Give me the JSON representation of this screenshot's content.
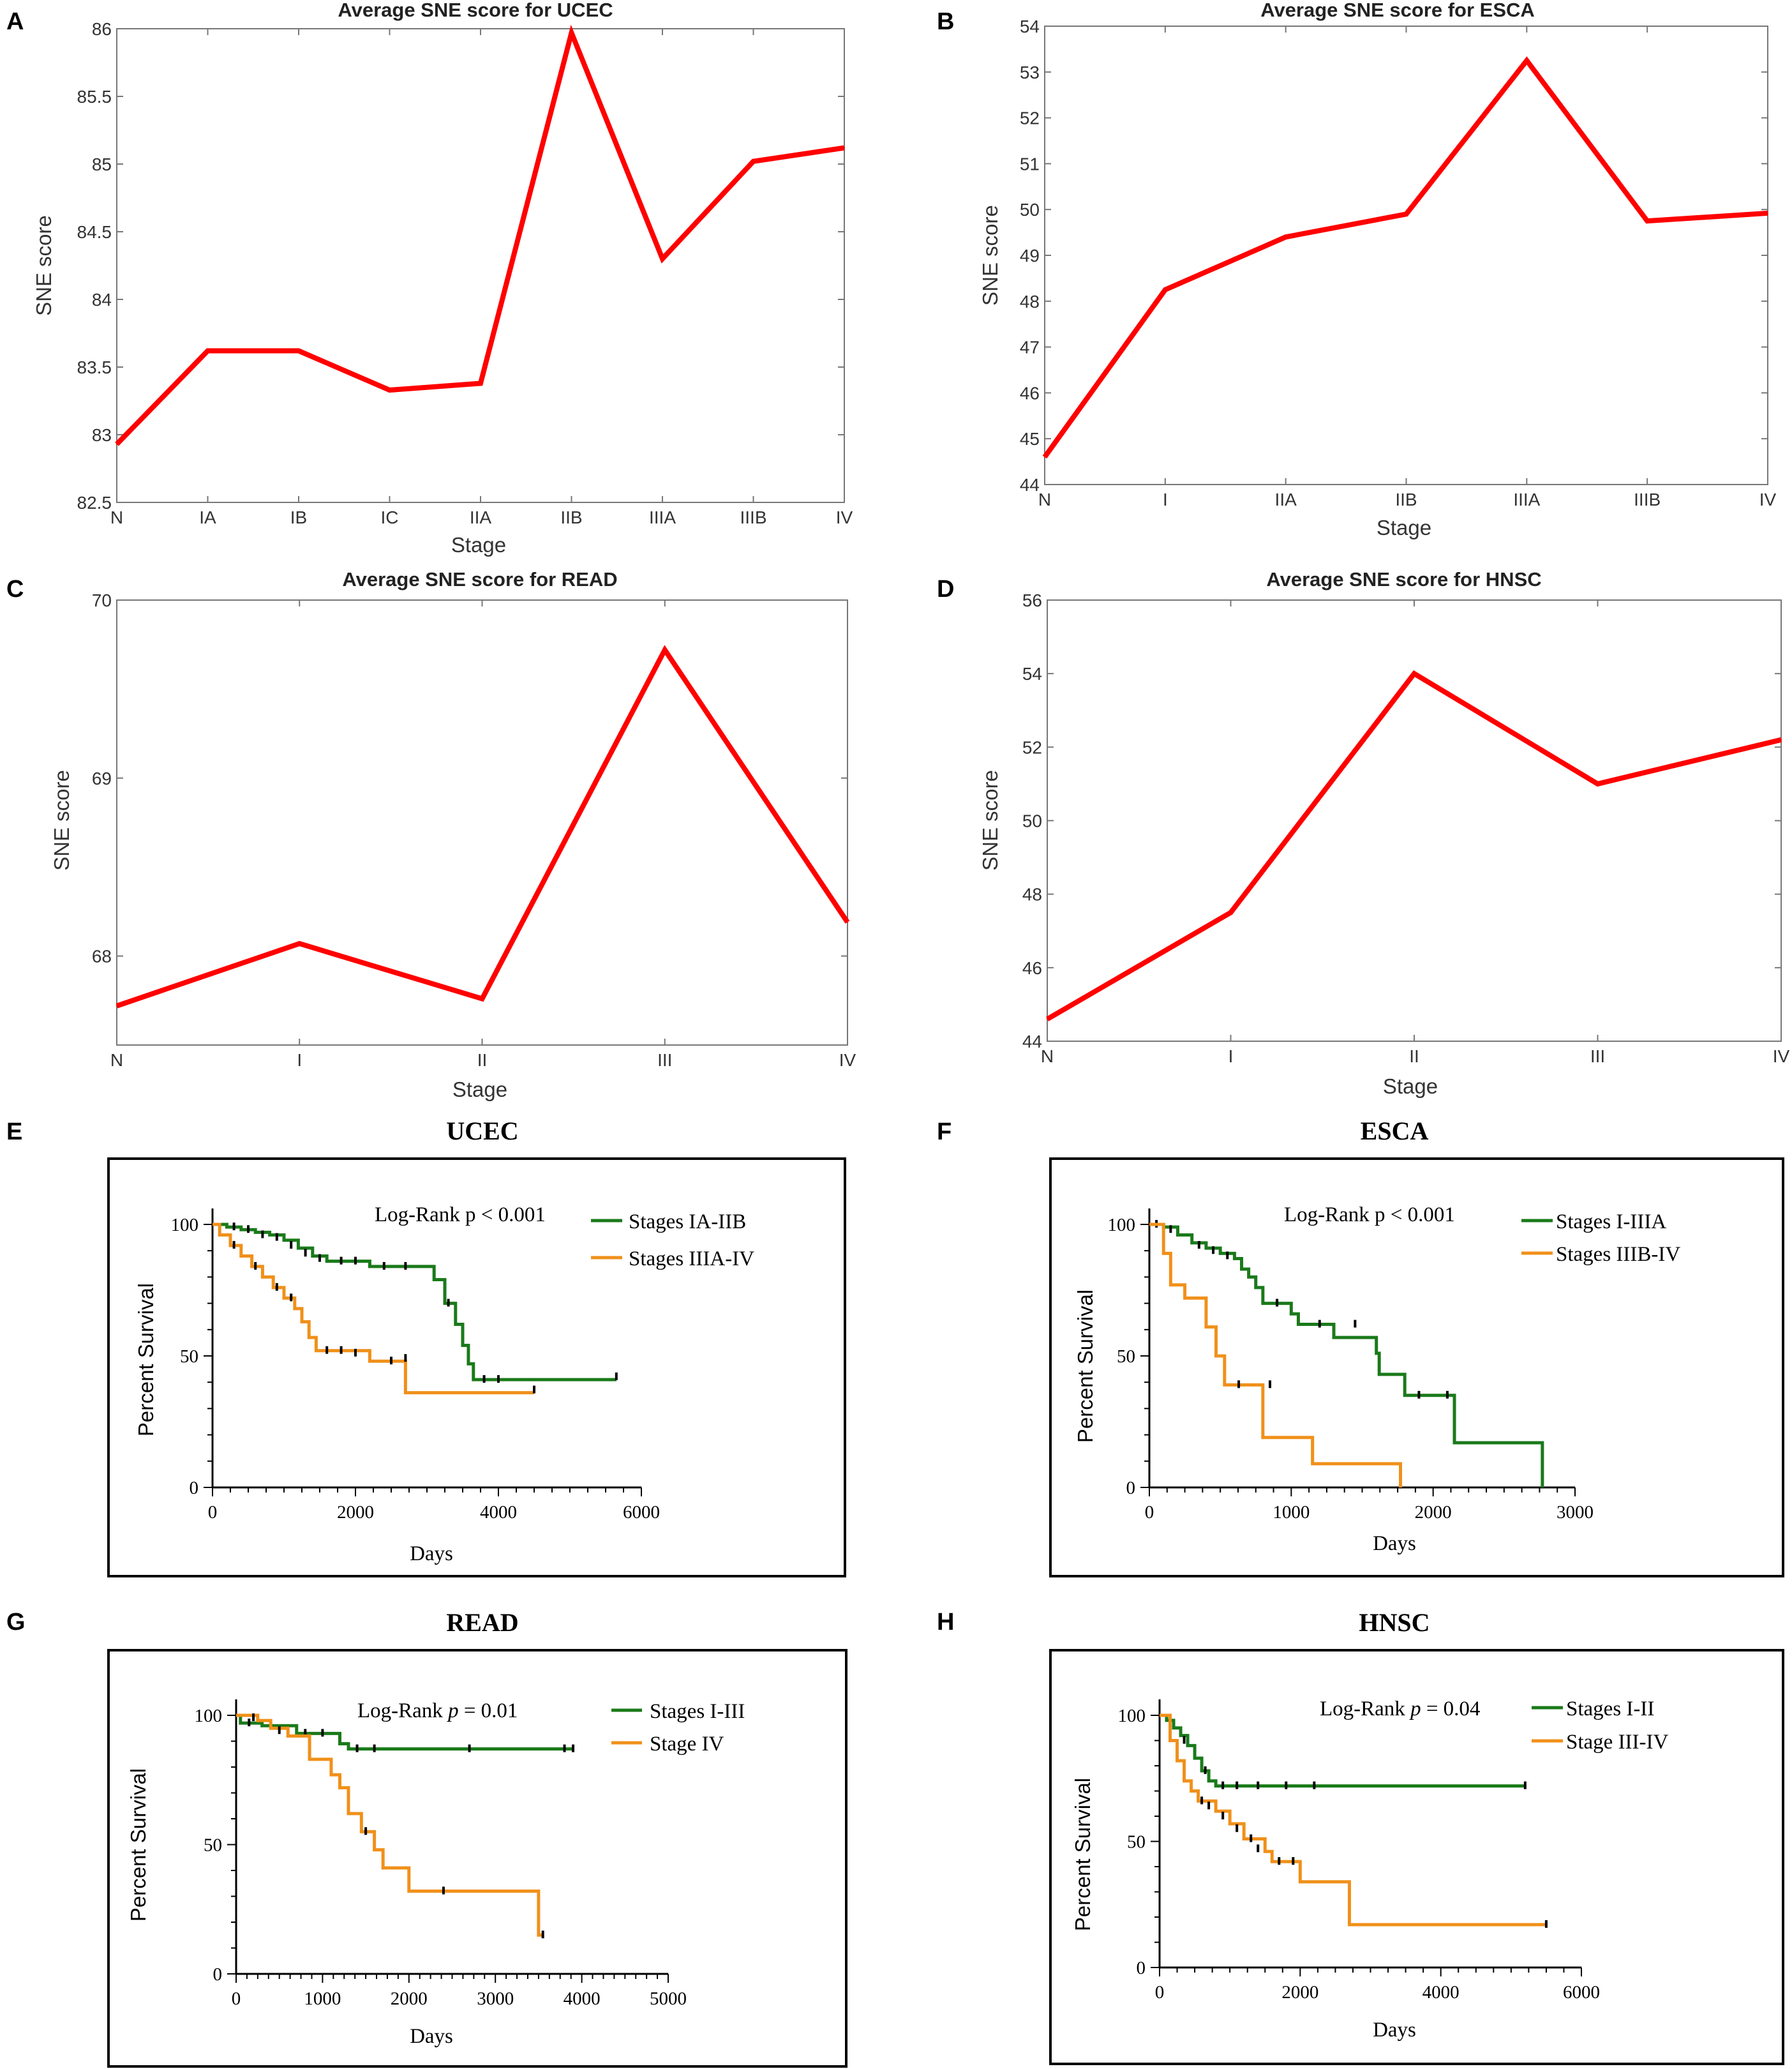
{
  "colors": {
    "line_red": "#ff0000",
    "km_green": "#1a7a1a",
    "km_orange": "#f0901a",
    "censor": "#000000",
    "frame": "#000000"
  },
  "chart_data": [
    {
      "panel": "A",
      "type": "line",
      "title": "Average SNE score for UCEC",
      "xlabel": "Stage",
      "ylabel": "SNE score",
      "categories": [
        "N",
        "IA",
        "IB",
        "IC",
        "IIA",
        "IIB",
        "IIIA",
        "IIIB",
        "IV"
      ],
      "values": [
        82.93,
        83.62,
        83.62,
        83.33,
        83.38,
        85.97,
        84.3,
        85.02,
        85.12
      ],
      "ylim": [
        82.5,
        86
      ],
      "yticks": [
        "86",
        "85.5",
        "85",
        "84.5",
        "84",
        "83.5",
        "83",
        "82.5"
      ]
    },
    {
      "panel": "B",
      "type": "line",
      "title": "Average SNE score for ESCA",
      "xlabel": "Stage",
      "ylabel": "SNE score",
      "categories": [
        "N",
        "I",
        "IIA",
        "IIB",
        "IIIA",
        "IIIB",
        "IV"
      ],
      "values": [
        44.6,
        48.25,
        49.4,
        49.9,
        53.25,
        49.75,
        49.92
      ],
      "ylim": [
        44,
        54
      ],
      "yticks": [
        "54",
        "53",
        "52",
        "51",
        "50",
        "49",
        "48",
        "47",
        "46",
        "45",
        "44"
      ]
    },
    {
      "panel": "C",
      "type": "line",
      "title": "Average SNE score for READ",
      "xlabel": "Stage",
      "ylabel": "SNE score",
      "categories": [
        "N",
        "I",
        "II",
        "III",
        "IV"
      ],
      "values": [
        67.72,
        68.07,
        67.76,
        69.72,
        68.19
      ],
      "ylim": [
        67.5,
        70
      ],
      "yticks": [
        "70",
        "69",
        "68"
      ]
    },
    {
      "panel": "D",
      "type": "line",
      "title": "Average SNE score for HNSC",
      "xlabel": "Stage",
      "ylabel": "SNE score",
      "categories": [
        "N",
        "I",
        "II",
        "III",
        "IV"
      ],
      "values": [
        44.6,
        47.5,
        54,
        51,
        52.2
      ],
      "ylim": [
        44,
        56
      ],
      "yticks": [
        "56",
        "54",
        "52",
        "50",
        "48",
        "46",
        "44"
      ]
    },
    {
      "panel": "E",
      "type": "kaplan-meier",
      "title": "UCEC",
      "xlabel": "Days",
      "ylabel": "Percent Survival",
      "xlim": [
        0,
        6000
      ],
      "ylim": [
        0,
        100
      ],
      "xticks": [
        "0",
        "2000",
        "4000",
        "6000"
      ],
      "yticks": [
        "100",
        "50",
        "0"
      ],
      "logrank": [
        "Log-Rank p < 0.001"
      ],
      "series": [
        {
          "name": "Stages IA-IIB",
          "color": "green",
          "steps": [
            [
              0,
              100
            ],
            [
              200,
              99
            ],
            [
              400,
              98
            ],
            [
              600,
              97
            ],
            [
              800,
              96
            ],
            [
              1000,
              94
            ],
            [
              1200,
              91
            ],
            [
              1400,
              88
            ],
            [
              1600,
              86
            ],
            [
              2200,
              84
            ],
            [
              3100,
              79
            ],
            [
              3250,
              70
            ],
            [
              3400,
              62
            ],
            [
              3500,
              54
            ],
            [
              3580,
              47
            ],
            [
              3650,
              41
            ],
            [
              5650,
              41
            ]
          ],
          "censors": [
            [
              300,
              99
            ],
            [
              500,
              98
            ],
            [
              700,
              96
            ],
            [
              900,
              95
            ],
            [
              1100,
              92
            ],
            [
              1300,
              89
            ],
            [
              1500,
              87
            ],
            [
              1800,
              86
            ],
            [
              2000,
              86
            ],
            [
              2400,
              84
            ],
            [
              2700,
              84
            ],
            [
              3300,
              70
            ],
            [
              3800,
              41
            ],
            [
              4000,
              41
            ],
            [
              5650,
              42
            ]
          ]
        },
        {
          "name": "Stages IIIA-IV",
          "color": "orange",
          "steps": [
            [
              0,
              100
            ],
            [
              100,
              96
            ],
            [
              250,
              92
            ],
            [
              400,
              88
            ],
            [
              550,
              84
            ],
            [
              700,
              80
            ],
            [
              850,
              76
            ],
            [
              1000,
              72
            ],
            [
              1150,
              68
            ],
            [
              1250,
              63
            ],
            [
              1350,
              57
            ],
            [
              1450,
              52
            ],
            [
              2200,
              48
            ],
            [
              2700,
              36
            ],
            [
              4500,
              36
            ]
          ],
          "censors": [
            [
              300,
              92
            ],
            [
              600,
              84
            ],
            [
              900,
              76
            ],
            [
              1100,
              72
            ],
            [
              1600,
              52
            ],
            [
              1800,
              52
            ],
            [
              2000,
              51
            ],
            [
              2500,
              48
            ],
            [
              2700,
              49
            ],
            [
              4500,
              37
            ]
          ]
        }
      ]
    },
    {
      "panel": "F",
      "type": "kaplan-meier",
      "title": "ESCA",
      "xlabel": "Days",
      "ylabel": "Percent Survival",
      "xlim": [
        0,
        3000
      ],
      "ylim": [
        0,
        100
      ],
      "xticks": [
        "0",
        "1000",
        "2000",
        "3000"
      ],
      "yticks": [
        "100",
        "50",
        "0"
      ],
      "logrank": [
        "Log-Rank p < 0.001"
      ],
      "series": [
        {
          "name": "Stages I-IIIA",
          "color": "green",
          "steps": [
            [
              0,
              100
            ],
            [
              100,
              99
            ],
            [
              200,
              96
            ],
            [
              300,
              93
            ],
            [
              400,
              91
            ],
            [
              500,
              89
            ],
            [
              600,
              87
            ],
            [
              650,
              83
            ],
            [
              700,
              80
            ],
            [
              750,
              76
            ],
            [
              800,
              70
            ],
            [
              1000,
              66
            ],
            [
              1050,
              62
            ],
            [
              1300,
              57
            ],
            [
              1600,
              51
            ],
            [
              1620,
              43
            ],
            [
              1800,
              35
            ],
            [
              2150,
              17
            ],
            [
              2770,
              0
            ]
          ],
          "censors": [
            [
              50,
              100
            ],
            [
              150,
              98
            ],
            [
              350,
              92
            ],
            [
              450,
              90
            ],
            [
              550,
              88
            ],
            [
              900,
              70
            ],
            [
              1200,
              62
            ],
            [
              1450,
              62
            ],
            [
              1900,
              35
            ],
            [
              2100,
              35
            ]
          ]
        },
        {
          "name": "Stages IIIB-IV",
          "color": "orange",
          "steps": [
            [
              0,
              100
            ],
            [
              100,
              89
            ],
            [
              150,
              77
            ],
            [
              250,
              72
            ],
            [
              400,
              61
            ],
            [
              470,
              50
            ],
            [
              530,
              39
            ],
            [
              800,
              19
            ],
            [
              1150,
              9
            ],
            [
              1770,
              0
            ]
          ],
          "censors": [
            [
              630,
              39
            ],
            [
              850,
              39
            ]
          ]
        }
      ]
    },
    {
      "panel": "G",
      "type": "kaplan-meier",
      "title": "READ",
      "xlabel": "Days",
      "ylabel": "Percent Survival",
      "xlim": [
        0,
        5000
      ],
      "ylim": [
        0,
        100
      ],
      "xticks": [
        "0",
        "1000",
        "2000",
        "3000",
        "4000",
        "5000"
      ],
      "yticks": [
        "100",
        "50",
        "0"
      ],
      "logrank": [
        "Log-Rank ",
        "p",
        " = 0.01"
      ],
      "series": [
        {
          "name": "Stages I-III",
          "color": "green",
          "steps": [
            [
              0,
              100
            ],
            [
              50,
              97
            ],
            [
              300,
              96
            ],
            [
              700,
              93
            ],
            [
              1200,
              89
            ],
            [
              1300,
              87
            ],
            [
              3900,
              87
            ]
          ],
          "censors": [
            [
              150,
              97
            ],
            [
              400,
              96
            ],
            [
              800,
              93
            ],
            [
              1000,
              93
            ],
            [
              1400,
              87
            ],
            [
              1600,
              87
            ],
            [
              2700,
              87
            ],
            [
              3800,
              87
            ],
            [
              3900,
              87
            ]
          ]
        },
        {
          "name": "Stage IV",
          "color": "orange",
          "steps": [
            [
              0,
              100
            ],
            [
              250,
              98
            ],
            [
              400,
              95
            ],
            [
              600,
              92
            ],
            [
              850,
              83
            ],
            [
              1100,
              77
            ],
            [
              1200,
              72
            ],
            [
              1300,
              62
            ],
            [
              1450,
              55
            ],
            [
              1600,
              48
            ],
            [
              1700,
              41
            ],
            [
              2000,
              32
            ],
            [
              3500,
              15
            ],
            [
              3560,
              15
            ]
          ],
          "censors": [
            [
              200,
              99
            ],
            [
              500,
              94
            ],
            [
              1500,
              55
            ],
            [
              2400,
              32
            ],
            [
              3550,
              15
            ]
          ]
        }
      ]
    },
    {
      "panel": "H",
      "type": "kaplan-meier",
      "title": "HNSC",
      "xlabel": "Days",
      "ylabel": "Percent Survival",
      "xlim": [
        0,
        6000
      ],
      "ylim": [
        0,
        100
      ],
      "xticks": [
        "0",
        "2000",
        "4000",
        "6000"
      ],
      "yticks": [
        "100",
        "50",
        "0"
      ],
      "logrank": [
        "Log-Rank ",
        "p",
        " = 0.04"
      ],
      "series": [
        {
          "name": "Stages I-II",
          "color": "green",
          "steps": [
            [
              0,
              100
            ],
            [
              100,
              98
            ],
            [
              200,
              95
            ],
            [
              300,
              92
            ],
            [
              400,
              88
            ],
            [
              500,
              83
            ],
            [
              600,
              78
            ],
            [
              700,
              74
            ],
            [
              800,
              72
            ],
            [
              5200,
              72
            ]
          ],
          "censors": [
            [
              150,
              97
            ],
            [
              350,
              90
            ],
            [
              650,
              78
            ],
            [
              900,
              72
            ],
            [
              1100,
              72
            ],
            [
              1400,
              72
            ],
            [
              1800,
              72
            ],
            [
              2200,
              72
            ],
            [
              5200,
              72
            ]
          ]
        },
        {
          "name": "Stage III-IV",
          "color": "orange",
          "steps": [
            [
              0,
              100
            ],
            [
              150,
              90
            ],
            [
              250,
              82
            ],
            [
              350,
              74
            ],
            [
              450,
              70
            ],
            [
              550,
              66
            ],
            [
              800,
              62
            ],
            [
              1000,
              57
            ],
            [
              1200,
              51
            ],
            [
              1500,
              46
            ],
            [
              1600,
              42
            ],
            [
              2000,
              34
            ],
            [
              2700,
              17
            ],
            [
              5500,
              17
            ]
          ],
          "censors": [
            [
              600,
              66
            ],
            [
              700,
              64
            ],
            [
              900,
              60
            ],
            [
              1100,
              55
            ],
            [
              1300,
              51
            ],
            [
              1400,
              47
            ],
            [
              1700,
              42
            ],
            [
              1900,
              42
            ],
            [
              5500,
              17
            ]
          ]
        }
      ]
    }
  ]
}
